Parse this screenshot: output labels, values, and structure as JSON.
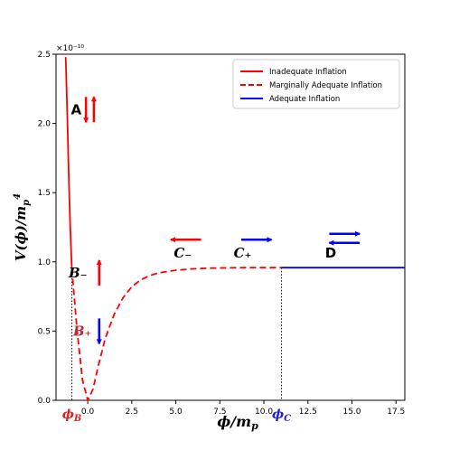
{
  "chart_data": {
    "type": "line",
    "xlabel": "ϕ/m_p",
    "ylabel": "V(ϕ)/m_p^4",
    "xlim": [
      -1.8,
      18.0
    ],
    "ylim": [
      0,
      2.5
    ],
    "y_scale_note": "×10⁻¹⁰",
    "xticks": [
      0.0,
      2.5,
      5.0,
      7.5,
      10.0,
      12.5,
      15.0,
      17.5
    ],
    "xtick_labels": [
      "0.0",
      "2.5",
      "5.0",
      "7.5",
      "10.0",
      "12.5",
      "15.0",
      "17.5"
    ],
    "yticks": [
      0.0,
      0.5,
      1.0,
      1.5,
      2.0,
      2.5
    ],
    "ytick_labels": [
      "0.0",
      "0.5",
      "1.0",
      "1.5",
      "2.0",
      "2.5"
    ],
    "phi_B": -0.9,
    "phi_C": 11.0,
    "phi_B_label": "ϕ_B",
    "phi_C_label": "ϕ_C",
    "legend_position": "top-right",
    "series": [
      {
        "name": "Inadequate Inflation",
        "color": "#ff0000",
        "style": "solid",
        "x": [
          -1.25,
          -1.2,
          -1.15,
          -1.1,
          -1.05,
          -1.0,
          -0.95,
          -0.9
        ],
        "y": [
          2.48,
          2.25,
          2.0,
          1.75,
          1.5,
          1.28,
          1.1,
          0.95
        ]
      },
      {
        "name": "Marginally Adequate Inflation",
        "color": "#ff0000",
        "style": "dashed",
        "x": [
          -0.9,
          -0.6,
          -0.3,
          0.0,
          0.3,
          0.6,
          1.0,
          1.5,
          2.0,
          2.5,
          3.0,
          3.5,
          4.0,
          5.0,
          6.0,
          7.0,
          8.0,
          9.0,
          10.0,
          11.0
        ],
        "y": [
          0.95,
          0.5,
          0.15,
          0.0,
          0.08,
          0.25,
          0.45,
          0.62,
          0.74,
          0.82,
          0.87,
          0.9,
          0.92,
          0.94,
          0.95,
          0.955,
          0.957,
          0.958,
          0.958,
          0.958
        ]
      },
      {
        "name": "Adequate Inflation",
        "color": "#0000ff",
        "style": "solid",
        "x": [
          11.0,
          18.0
        ],
        "y": [
          0.958,
          0.958
        ]
      }
    ],
    "annotations": [
      {
        "label": "A",
        "x": -0.45,
        "y": 2.1,
        "color": "#000000",
        "arrows": [
          {
            "x": -0.1,
            "dir": "down",
            "color": "#ff0000"
          },
          {
            "x": 0.35,
            "dir": "up",
            "color": "#ff0000"
          }
        ]
      },
      {
        "label": "B₋",
        "x": -0.35,
        "y": 0.92,
        "color": "#000000",
        "arrows": [
          {
            "x": 0.65,
            "dir": "up",
            "color": "#ff0000"
          }
        ]
      },
      {
        "label": "B₊",
        "x": -0.1,
        "y": 0.5,
        "color": "#b03040",
        "arrows": [
          {
            "x": 0.65,
            "dir": "down",
            "color": "#0000ff"
          }
        ]
      },
      {
        "label": "C₋",
        "x": 5.6,
        "y": 1.0,
        "color": "#000000",
        "arrows": [
          {
            "x": 5.0,
            "dir": "left",
            "color": "#ff0000"
          }
        ]
      },
      {
        "label": "C₊",
        "x": 9.0,
        "y": 1.0,
        "color": "#000000",
        "arrows": [
          {
            "x": 9.0,
            "dir": "right",
            "color": "#0000ff"
          }
        ]
      },
      {
        "label": "D",
        "x": 14.0,
        "y": 1.0,
        "color": "#000000",
        "arrows": [
          {
            "x": 14.0,
            "dir": "right",
            "color": "#0000ff"
          },
          {
            "x": 14.0,
            "dir": "left",
            "color": "#0000ff"
          }
        ]
      }
    ]
  }
}
